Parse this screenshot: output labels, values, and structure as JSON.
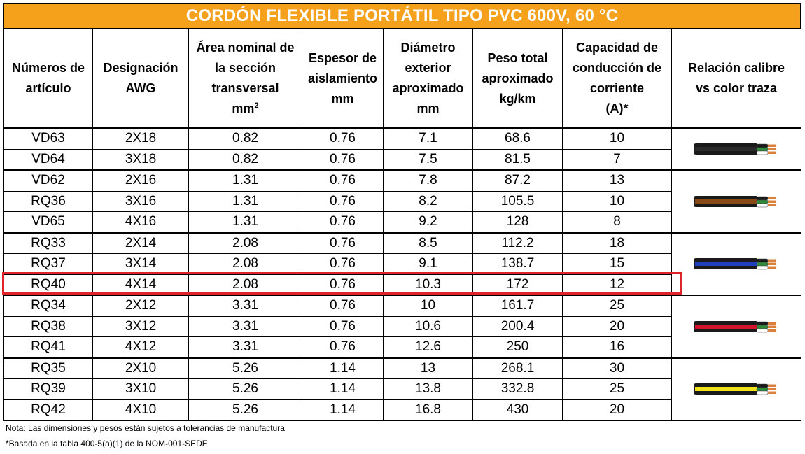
{
  "title": "CORDÓN FLEXIBLE PORTÁTIL TIPO PVC 600V, 60 °C",
  "headers": {
    "articulo_l1": "Números de",
    "articulo_l2": "artículo",
    "awg_l1": "Designación",
    "awg_l2": "AWG",
    "area_l1": "Área nominal de",
    "area_l2": "la sección",
    "area_l3": "transversal",
    "area_unit": "mm",
    "area_unit_sup": "2",
    "espesor_l1": "Espesor de",
    "espesor_l2": "aislamiento",
    "espesor_l3": "mm",
    "diametro_l1": "Diámetro",
    "diametro_l2": "exterior",
    "diametro_l3": "aproximado",
    "diametro_l4": "mm",
    "peso_l1": "Peso total",
    "peso_l2": "aproximado",
    "peso_l3": "kg/km",
    "capacidad_l1": "Capacidad de",
    "capacidad_l2": "conducción de",
    "capacidad_l3": "corriente",
    "capacidad_l4": "(A)*",
    "relacion_l1": "Relación calibre",
    "relacion_l2": "vs color traza"
  },
  "rows": [
    {
      "articulo": "VD63",
      "awg": "2X18",
      "area": "0.82",
      "espesor": "0.76",
      "diametro": "7.1",
      "peso": "68.6",
      "capacidad": "10"
    },
    {
      "articulo": "VD64",
      "awg": "3X18",
      "area": "0.82",
      "espesor": "0.76",
      "diametro": "7.5",
      "peso": "81.5",
      "capacidad": "7"
    },
    {
      "articulo": "VD62",
      "awg": "2X16",
      "area": "1.31",
      "espesor": "0.76",
      "diametro": "7.8",
      "peso": "87.2",
      "capacidad": "13"
    },
    {
      "articulo": "RQ36",
      "awg": "3X16",
      "area": "1.31",
      "espesor": "0.76",
      "diametro": "8.2",
      "peso": "105.5",
      "capacidad": "10"
    },
    {
      "articulo": "VD65",
      "awg": "4X16",
      "area": "1.31",
      "espesor": "0.76",
      "diametro": "9.2",
      "peso": "128",
      "capacidad": "8"
    },
    {
      "articulo": "RQ33",
      "awg": "2X14",
      "area": "2.08",
      "espesor": "0.76",
      "diametro": "8.5",
      "peso": "112.2",
      "capacidad": "18"
    },
    {
      "articulo": "RQ37",
      "awg": "3X14",
      "area": "2.08",
      "espesor": "0.76",
      "diametro": "9.1",
      "peso": "138.7",
      "capacidad": "15"
    },
    {
      "articulo": "RQ40",
      "awg": "4X14",
      "area": "2.08",
      "espesor": "0.76",
      "diametro": "10.3",
      "peso": "172",
      "capacidad": "12"
    },
    {
      "articulo": "RQ34",
      "awg": "2X12",
      "area": "3.31",
      "espesor": "0.76",
      "diametro": "10",
      "peso": "161.7",
      "capacidad": "25"
    },
    {
      "articulo": "RQ38",
      "awg": "3X12",
      "area": "3.31",
      "espesor": "0.76",
      "diametro": "10.6",
      "peso": "200.4",
      "capacidad": "20"
    },
    {
      "articulo": "RQ41",
      "awg": "4X12",
      "area": "3.31",
      "espesor": "0.76",
      "diametro": "12.6",
      "peso": "250",
      "capacidad": "16"
    },
    {
      "articulo": "RQ35",
      "awg": "2X10",
      "area": "5.26",
      "espesor": "1.14",
      "diametro": "13",
      "peso": "268.1",
      "capacidad": "30"
    },
    {
      "articulo": "RQ39",
      "awg": "3X10",
      "area": "5.26",
      "espesor": "1.14",
      "diametro": "13.8",
      "peso": "332.8",
      "capacidad": "25"
    },
    {
      "articulo": "RQ42",
      "awg": "4X10",
      "area": "5.26",
      "espesor": "1.14",
      "diametro": "16.8",
      "peso": "430",
      "capacidad": "20"
    }
  ],
  "trace_colors": {
    "awg18": "#2a2a2a",
    "awg16": "#8B4A14",
    "awg14": "#1f3fbf",
    "awg12": "#d3132a",
    "awg10": "#f2e21a"
  },
  "highlight_color": "#E0242C",
  "title_color": "#F5A11B",
  "notes": {
    "nota": "Nota: Las dimensiones y pesos están sujetos a tolerancias de manufactura",
    "basada": "*Basada en la tabla 400-5(a)(1) de la NOM-001-SEDE"
  }
}
